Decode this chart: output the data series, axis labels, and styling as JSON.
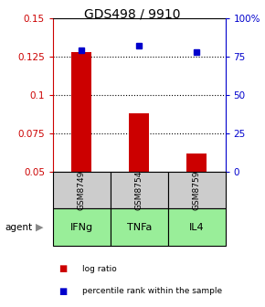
{
  "title": "GDS498 / 9910",
  "categories": [
    "IFNg",
    "TNFa",
    "IL4"
  ],
  "sample_ids": [
    "GSM8749",
    "GSM8754",
    "GSM8759"
  ],
  "log_ratio": [
    0.128,
    0.088,
    0.062
  ],
  "percentile_rank": [
    79,
    82,
    78
  ],
  "left_ylim": [
    0.05,
    0.15
  ],
  "right_ylim": [
    0,
    100
  ],
  "left_yticks": [
    0.05,
    0.075,
    0.1,
    0.125,
    0.15
  ],
  "right_yticks": [
    0,
    25,
    50,
    75,
    100
  ],
  "right_yticklabels": [
    "0",
    "25",
    "50",
    "75",
    "100%"
  ],
  "bar_color": "#cc0000",
  "square_color": "#0000cc",
  "bar_width": 0.35,
  "agent_label": "agent",
  "legend_items": [
    "log ratio",
    "percentile rank within the sample"
  ],
  "legend_colors": [
    "#cc0000",
    "#0000cc"
  ],
  "sample_box_color": "#cccccc",
  "agent_box_color": "#99ee99",
  "title_fontsize": 10,
  "tick_fontsize": 7.5,
  "label_fontsize": 8
}
